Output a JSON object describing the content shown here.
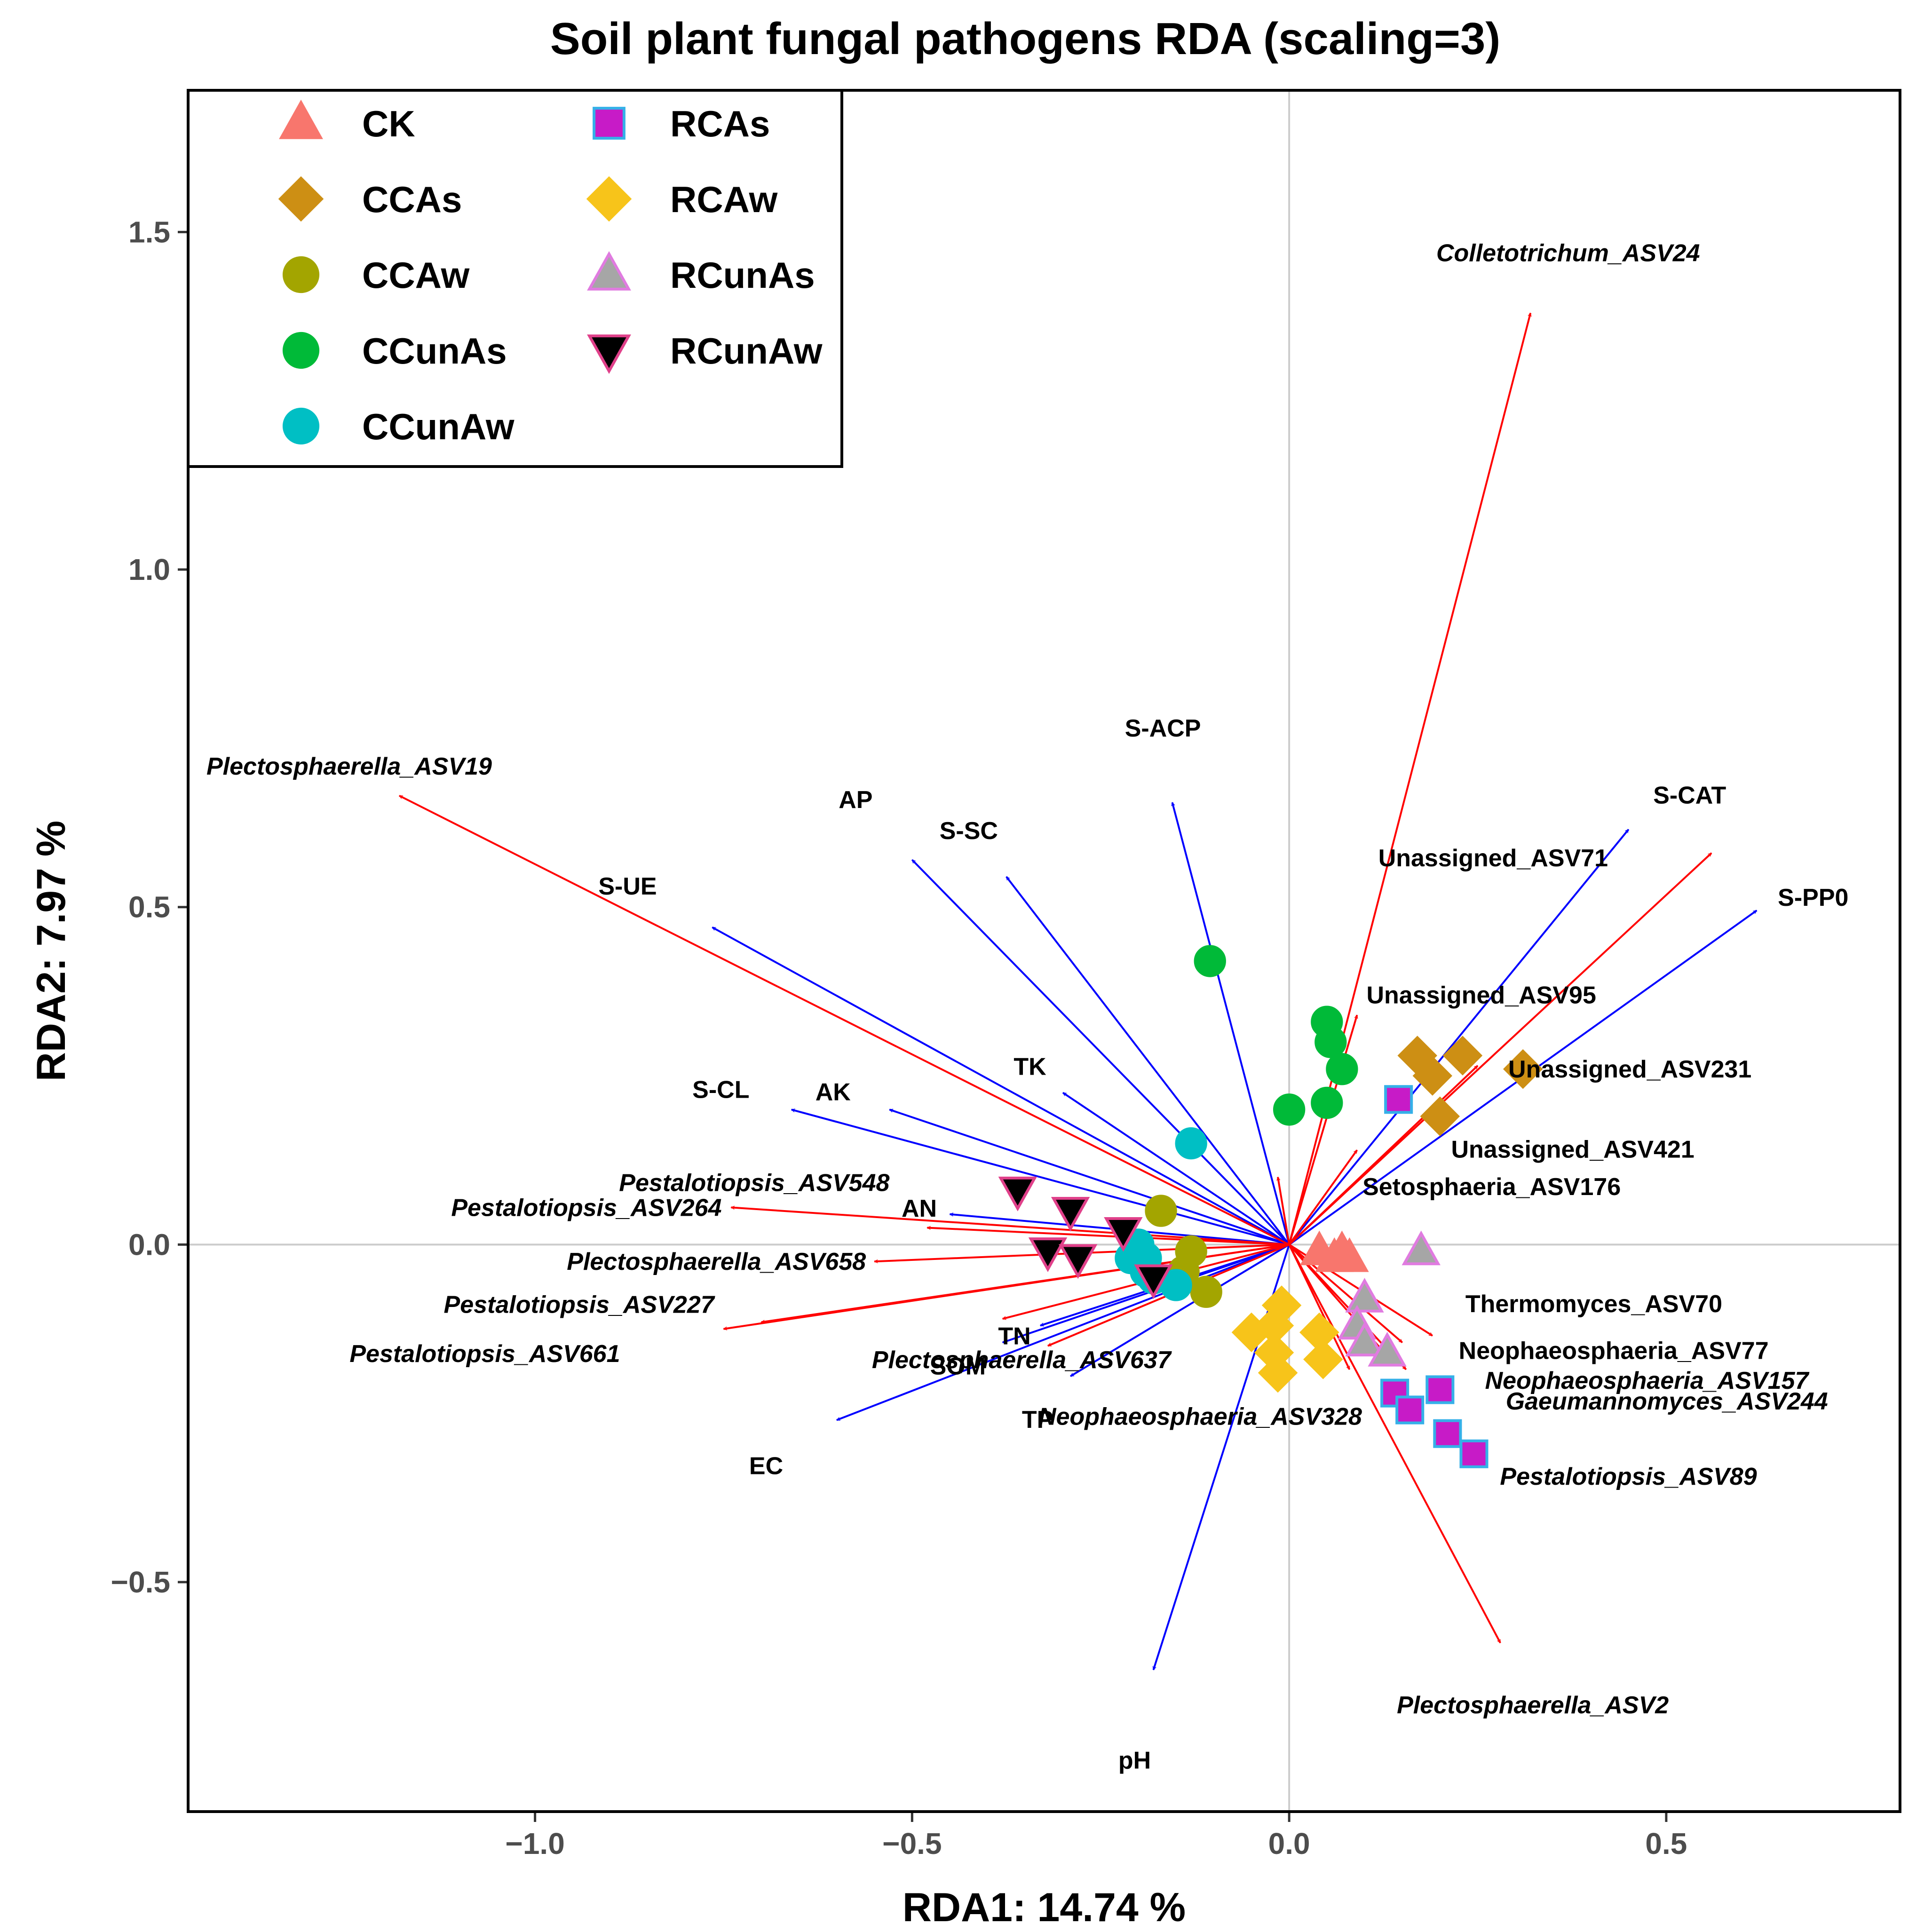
{
  "chart_data": {
    "type": "scatter",
    "title": "Soil plant fungal pathogens RDA (scaling=3)",
    "xlabel": "RDA1: 14.74 %",
    "ylabel": "RDA2: 7.97 %",
    "xlim": [
      -1.46,
      0.81
    ],
    "ylim": [
      -0.84,
      1.71
    ],
    "x_ticks": [
      -1.0,
      -0.5,
      0.0,
      0.5
    ],
    "x_tick_labels": [
      "−1.0",
      "−0.5",
      "0.0",
      "0.5"
    ],
    "y_ticks": [
      -0.5,
      0.0,
      0.5,
      1.0,
      1.5
    ],
    "y_tick_labels": [
      "−0.5",
      "0.0",
      "0.5",
      "1.0",
      "1.5"
    ],
    "legend": {
      "position": "top-left",
      "entries": [
        {
          "name": "CK",
          "shape": "triangle-up",
          "fill": "#f8766d",
          "stroke": "#f8766d"
        },
        {
          "name": "CCAs",
          "shape": "diamond",
          "fill": "#cd8f14",
          "stroke": "#cd8f14"
        },
        {
          "name": "CCAw",
          "shape": "circle",
          "fill": "#a3a500",
          "stroke": "#a3a500"
        },
        {
          "name": "CCunAs",
          "shape": "circle",
          "fill": "#00ba38",
          "stroke": "#00ba38"
        },
        {
          "name": "CCunAw",
          "shape": "circle",
          "fill": "#00bfc4",
          "stroke": "#00bfc4"
        },
        {
          "name": "RCAs",
          "shape": "square",
          "fill": "#c71bc7",
          "stroke": "#35b0e8"
        },
        {
          "name": "RCAw",
          "shape": "diamond",
          "fill": "#f7c41a",
          "stroke": "#f7c41a"
        },
        {
          "name": "RCunAs",
          "shape": "triangle-up",
          "fill": "#a6a6a6",
          "stroke": "#e07be0"
        },
        {
          "name": "RCunAw",
          "shape": "triangle-down",
          "fill": "#000000",
          "stroke": "#e0408a"
        }
      ]
    },
    "series": [
      {
        "name": "CK",
        "points": [
          [
            0.04,
            -0.01
          ],
          [
            0.06,
            -0.02
          ],
          [
            0.08,
            -0.02
          ],
          [
            0.07,
            -0.01
          ]
        ]
      },
      {
        "name": "CCAs",
        "points": [
          [
            0.17,
            0.28
          ],
          [
            0.19,
            0.25
          ],
          [
            0.23,
            0.28
          ],
          [
            0.2,
            0.19
          ],
          [
            0.31,
            0.26
          ]
        ]
      },
      {
        "name": "CCAw",
        "points": [
          [
            -0.17,
            0.05
          ],
          [
            -0.13,
            -0.01
          ],
          [
            -0.11,
            -0.07
          ],
          [
            -0.14,
            -0.04
          ]
        ]
      },
      {
        "name": "CCunAs",
        "points": [
          [
            -0.105,
            0.42
          ],
          [
            0.05,
            0.33
          ],
          [
            0.055,
            0.3
          ],
          [
            0.07,
            0.26
          ],
          [
            0.05,
            0.21
          ],
          [
            0.0,
            0.2
          ]
        ]
      },
      {
        "name": "CCunAw",
        "points": [
          [
            -0.13,
            0.15
          ],
          [
            -0.19,
            -0.02
          ],
          [
            -0.21,
            -0.02
          ],
          [
            -0.2,
            0.0
          ],
          [
            -0.18,
            -0.05
          ],
          [
            -0.15,
            -0.06
          ],
          [
            -0.19,
            -0.04
          ]
        ]
      },
      {
        "name": "RCAs",
        "points": [
          [
            0.145,
            0.215
          ],
          [
            0.14,
            -0.22
          ],
          [
            0.16,
            -0.245
          ],
          [
            0.2,
            -0.215
          ],
          [
            0.21,
            -0.28
          ],
          [
            0.245,
            -0.31
          ]
        ]
      },
      {
        "name": "RCAw",
        "points": [
          [
            -0.01,
            -0.09
          ],
          [
            -0.05,
            -0.13
          ],
          [
            -0.02,
            -0.16
          ],
          [
            -0.015,
            -0.19
          ],
          [
            0.04,
            -0.13
          ],
          [
            0.045,
            -0.17
          ],
          [
            -0.02,
            -0.12
          ]
        ]
      },
      {
        "name": "RCunAs",
        "points": [
          [
            0.175,
            -0.01
          ],
          [
            0.1,
            -0.08
          ],
          [
            0.09,
            -0.12
          ],
          [
            0.1,
            -0.145
          ],
          [
            0.13,
            -0.16
          ]
        ]
      },
      {
        "name": "RCunAw",
        "points": [
          [
            -0.36,
            0.08
          ],
          [
            -0.29,
            0.05
          ],
          [
            -0.22,
            0.02
          ],
          [
            -0.32,
            -0.01
          ],
          [
            -0.28,
            -0.02
          ],
          [
            -0.18,
            -0.05
          ]
        ]
      }
    ],
    "env_vectors": [
      {
        "name": "S-ACP",
        "x": -0.155,
        "y": 0.655
      },
      {
        "name": "AP",
        "x": -0.5,
        "y": 0.57
      },
      {
        "name": "S-SC",
        "x": -0.375,
        "y": 0.545
      },
      {
        "name": "S-UE",
        "x": -0.765,
        "y": 0.47
      },
      {
        "name": "S-CL",
        "x": -0.66,
        "y": 0.2
      },
      {
        "name": "AK",
        "x": -0.53,
        "y": 0.2
      },
      {
        "name": "TK",
        "x": -0.3,
        "y": 0.225
      },
      {
        "name": "AN",
        "x": -0.45,
        "y": 0.045
      },
      {
        "name": "TN",
        "x": -0.33,
        "y": -0.12
      },
      {
        "name": "SOM",
        "x": -0.38,
        "y": -0.145
      },
      {
        "name": "TP",
        "x": -0.29,
        "y": -0.195
      },
      {
        "name": "EC",
        "x": -0.6,
        "y": -0.26
      },
      {
        "name": "pH",
        "x": -0.18,
        "y": -0.63
      },
      {
        "name": "S-CAT",
        "x": 0.45,
        "y": 0.615
      },
      {
        "name": "S-PP0",
        "x": 0.62,
        "y": 0.495
      }
    ],
    "species_vectors": [
      {
        "name": "Colletotrichum_ASV24",
        "x": 0.32,
        "y": 1.38
      },
      {
        "name": "Plectosphaerella_ASV19",
        "x": -1.18,
        "y": 0.665
      },
      {
        "name": "Unassigned_ASV71",
        "x": 0.56,
        "y": 0.58
      },
      {
        "name": "Unassigned_ASV95",
        "x": 0.09,
        "y": 0.34
      },
      {
        "name": "Unassigned_ASV231",
        "x": 0.25,
        "y": 0.265
      },
      {
        "name": "Unassigned_ASV421",
        "x": 0.09,
        "y": 0.14
      },
      {
        "name": "Setosphaeria_ASV176",
        "x": -0.015,
        "y": 0.1
      },
      {
        "name": "Pestalotiopsis_ASV548",
        "x": -0.48,
        "y": 0.025
      },
      {
        "name": "Pestalotiopsis_ASV264",
        "x": -0.74,
        "y": 0.055
      },
      {
        "name": "Plectosphaerella_ASV658",
        "x": -0.55,
        "y": -0.025
      },
      {
        "name": "Pestalotiopsis_ASV227",
        "x": -0.7,
        "y": -0.115
      },
      {
        "name": "Pestalotiopsis_ASV661",
        "x": -0.75,
        "y": -0.125
      },
      {
        "name": "Plectosphaerella_ASV637",
        "x": -0.38,
        "y": -0.11
      },
      {
        "name": "Neophaeosphaeria_ASV328",
        "x": -0.32,
        "y": -0.15
      },
      {
        "name": "Thermomyces_ASV70",
        "x": 0.19,
        "y": -0.135
      },
      {
        "name": "Neophaeosphaeria_ASV77",
        "x": 0.15,
        "y": -0.145
      },
      {
        "name": "Neophaeosphaeria_ASV157",
        "x": 0.13,
        "y": -0.165
      },
      {
        "name": "Gaeumannomyces_ASV244",
        "x": 0.155,
        "y": -0.185
      },
      {
        "name": "Pestalotiopsis_ASV89",
        "x": 0.08,
        "y": -0.185
      },
      {
        "name": "Plectosphaerella_ASV2",
        "x": 0.28,
        "y": -0.59
      }
    ],
    "reference_lines": {
      "x": 0.0,
      "y": 0.0
    },
    "colors": {
      "env_arrow": "#0000ff",
      "species_arrow": "#ff0000",
      "reference_line": "#cccccc"
    }
  }
}
